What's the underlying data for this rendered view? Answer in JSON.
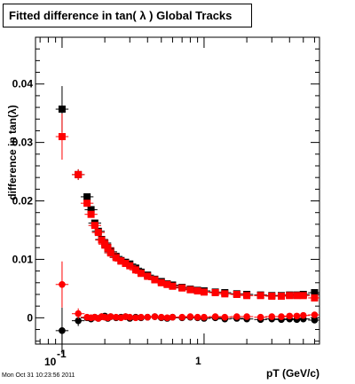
{
  "title": "Fitted difference in tan( λ )  Global Tracks",
  "timestamp": "Mon Oct 31 10:23:56 2011",
  "colors": {
    "black_series": "#000000",
    "red_series": "#ff0000"
  },
  "chart_data": {
    "type": "scatter",
    "title": "Fitted difference in tan( λ )  Global Tracks",
    "xlabel": "pT (GeV/c)",
    "ylabel": "difference in tan(λ)",
    "x_scale": "log",
    "xlim": [
      0.065,
      6.5
    ],
    "ylim": [
      -0.0045,
      0.048
    ],
    "x_tick_labels": [
      "10",
      "1"
    ],
    "x_tick_label_exponent": "-1",
    "y_tick_labels": [
      "0",
      "0.01",
      "0.02",
      "0.03",
      "0.04"
    ],
    "series": [
      {
        "name": "",
        "color": "#000000",
        "marker": "square",
        "x": [
          0.1,
          0.13,
          0.15,
          0.16,
          0.17,
          0.18,
          0.19,
          0.2,
          0.21,
          0.22,
          0.24,
          0.26,
          0.28,
          0.3,
          0.33,
          0.36,
          0.4,
          0.45,
          0.5,
          0.55,
          0.6,
          0.7,
          0.8,
          0.9,
          1.0,
          1.2,
          1.4,
          1.7,
          2.0,
          2.5,
          3.0,
          3.5,
          4.0,
          4.5,
          5.0,
          6.0
        ],
        "y": [
          0.0357,
          0.0245,
          0.0207,
          0.0185,
          0.0162,
          0.0148,
          0.0134,
          0.0128,
          0.012,
          0.0113,
          0.0105,
          0.0098,
          0.0095,
          0.0092,
          0.0085,
          0.0078,
          0.0073,
          0.0066,
          0.0062,
          0.0058,
          0.0056,
          0.0052,
          0.0049,
          0.0047,
          0.0046,
          0.0044,
          0.0043,
          0.0041,
          0.004,
          0.0039,
          0.0038,
          0.0038,
          0.0039,
          0.0039,
          0.004,
          0.0043
        ]
      },
      {
        "name": "",
        "color": "#ff0000",
        "marker": "square",
        "x": [
          0.1,
          0.13,
          0.15,
          0.16,
          0.17,
          0.18,
          0.19,
          0.2,
          0.21,
          0.22,
          0.24,
          0.26,
          0.28,
          0.3,
          0.33,
          0.36,
          0.4,
          0.45,
          0.5,
          0.55,
          0.6,
          0.7,
          0.8,
          0.9,
          1.0,
          1.2,
          1.4,
          1.7,
          2.0,
          2.5,
          3.0,
          3.5,
          4.0,
          4.5,
          5.0,
          6.0
        ],
        "y": [
          0.031,
          0.0245,
          0.0196,
          0.0177,
          0.0158,
          0.0146,
          0.0133,
          0.0126,
          0.0119,
          0.0111,
          0.0103,
          0.0097,
          0.0093,
          0.0089,
          0.0082,
          0.0076,
          0.0071,
          0.0065,
          0.006,
          0.0057,
          0.0054,
          0.0051,
          0.0048,
          0.0046,
          0.0044,
          0.0043,
          0.0041,
          0.004,
          0.0038,
          0.0038,
          0.0037,
          0.0037,
          0.0038,
          0.0038,
          0.0038,
          0.0034
        ]
      },
      {
        "name": "",
        "color": "#000000",
        "marker": "circle",
        "x": [
          0.1,
          0.13,
          0.15,
          0.16,
          0.17,
          0.18,
          0.19,
          0.2,
          0.21,
          0.22,
          0.24,
          0.26,
          0.28,
          0.3,
          0.33,
          0.36,
          0.4,
          0.45,
          0.5,
          0.55,
          0.6,
          0.7,
          0.8,
          0.9,
          1.0,
          1.2,
          1.4,
          1.7,
          2.0,
          2.5,
          3.0,
          3.5,
          4.0,
          4.5,
          5.0,
          6.0
        ],
        "y": [
          -0.0022,
          -0.0005,
          0.0,
          -0.0002,
          0.0001,
          -0.0001,
          0.0002,
          0.0003,
          -0.0001,
          0.0002,
          0.0,
          0.0001,
          0.0002,
          -0.0001,
          0.0001,
          0.0,
          0.0001,
          0.0002,
          0.0,
          -0.0001,
          0.0001,
          0.0,
          0.0001,
          0.0,
          -0.0001,
          0.0,
          -0.0002,
          -0.0001,
          -0.0002,
          -0.0003,
          -0.0002,
          -0.0003,
          -0.0002,
          -0.0003,
          -0.0002,
          -0.0004
        ]
      },
      {
        "name": "",
        "color": "#ff0000",
        "marker": "circle",
        "x": [
          0.1,
          0.13,
          0.15,
          0.16,
          0.17,
          0.18,
          0.19,
          0.2,
          0.21,
          0.22,
          0.24,
          0.26,
          0.28,
          0.3,
          0.33,
          0.36,
          0.4,
          0.45,
          0.5,
          0.55,
          0.6,
          0.7,
          0.8,
          0.9,
          1.0,
          1.2,
          1.4,
          1.7,
          2.0,
          2.5,
          3.0,
          3.5,
          4.0,
          4.5,
          5.0,
          6.0
        ],
        "y": [
          0.0057,
          0.0007,
          0.0001,
          0.0,
          0.0001,
          -0.0001,
          0.0002,
          0.0001,
          0.0,
          0.0002,
          0.0001,
          0.0,
          0.0002,
          0.0001,
          0.0,
          0.0001,
          0.0001,
          0.0002,
          0.0001,
          0.0,
          0.0001,
          0.0001,
          0.0002,
          0.0001,
          0.0001,
          0.0002,
          0.0001,
          0.0002,
          0.0002,
          0.0001,
          0.0002,
          0.0002,
          0.0003,
          0.0003,
          0.0004,
          0.0005
        ]
      }
    ]
  }
}
